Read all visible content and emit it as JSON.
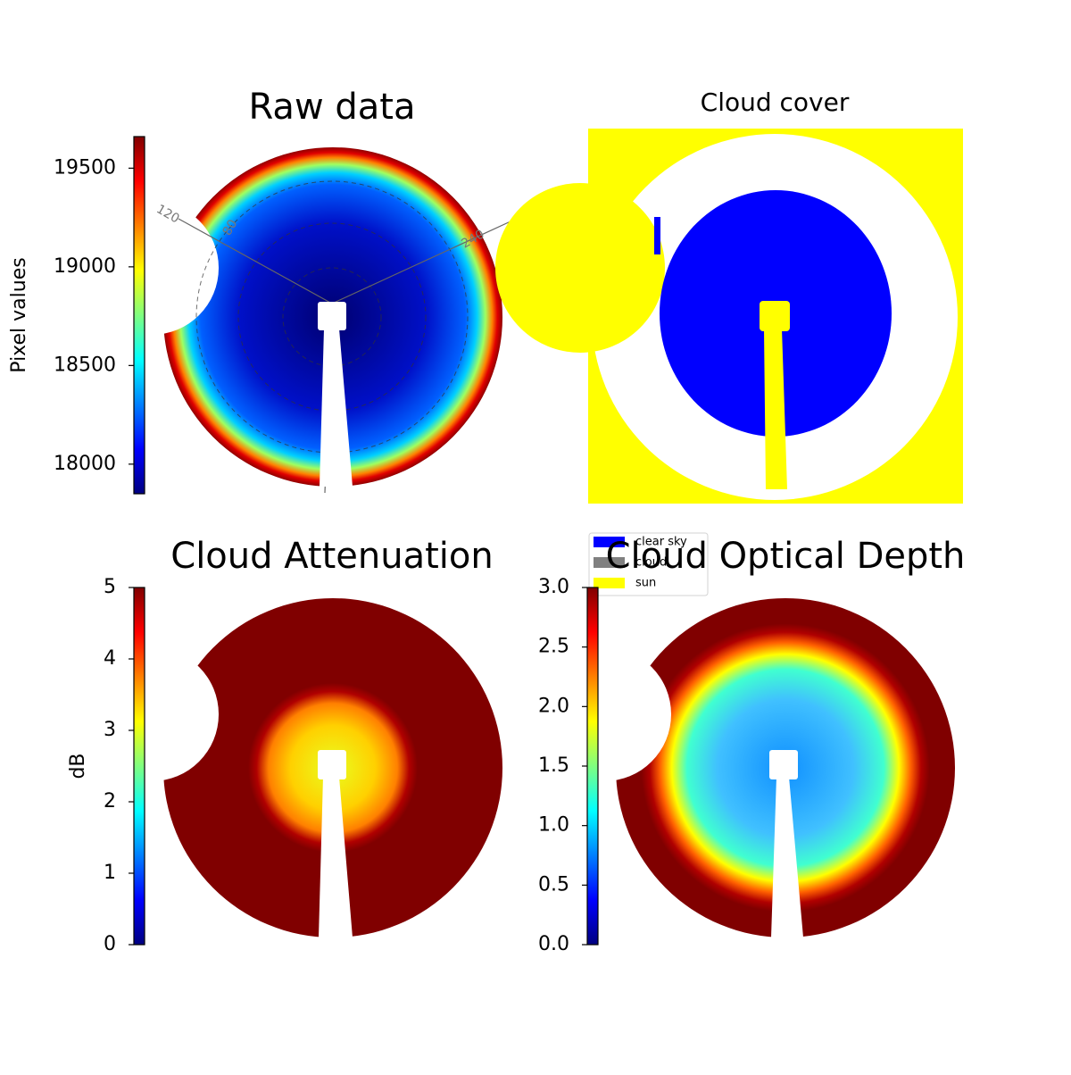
{
  "chart_data": [
    {
      "type": "image",
      "title": "Raw data",
      "colormap": "jet",
      "colorbar_label": "Pixel values",
      "clim": [
        17850,
        19660
      ],
      "cticks": [
        18000,
        18500,
        19000,
        19500
      ],
      "annotations": [
        "120",
        "80",
        "240"
      ]
    },
    {
      "type": "classes",
      "title": "Cloud cover",
      "series": [
        {
          "name": "clear sky",
          "color": "#0000ff"
        },
        {
          "name": "cloud",
          "color": "#808080"
        },
        {
          "name": "sun",
          "color": "#ffff00"
        }
      ]
    },
    {
      "type": "image",
      "title": "Cloud Attenuation",
      "colormap": "jet",
      "colorbar_label": "dB",
      "clim": [
        0,
        5
      ],
      "cticks": [
        0,
        1,
        2,
        3,
        4,
        5
      ]
    },
    {
      "type": "image",
      "title": "Cloud Optical Depth",
      "colormap": "jet",
      "clim": [
        0,
        3
      ],
      "cticks": [
        {
          "value": 0,
          "label": "0.0"
        },
        0.5,
        {
          "value": 1,
          "label": "1.0"
        },
        1.5,
        {
          "value": 2,
          "label": "2.0"
        },
        2.5,
        {
          "value": 3,
          "label": "3.0"
        }
      ]
    }
  ]
}
